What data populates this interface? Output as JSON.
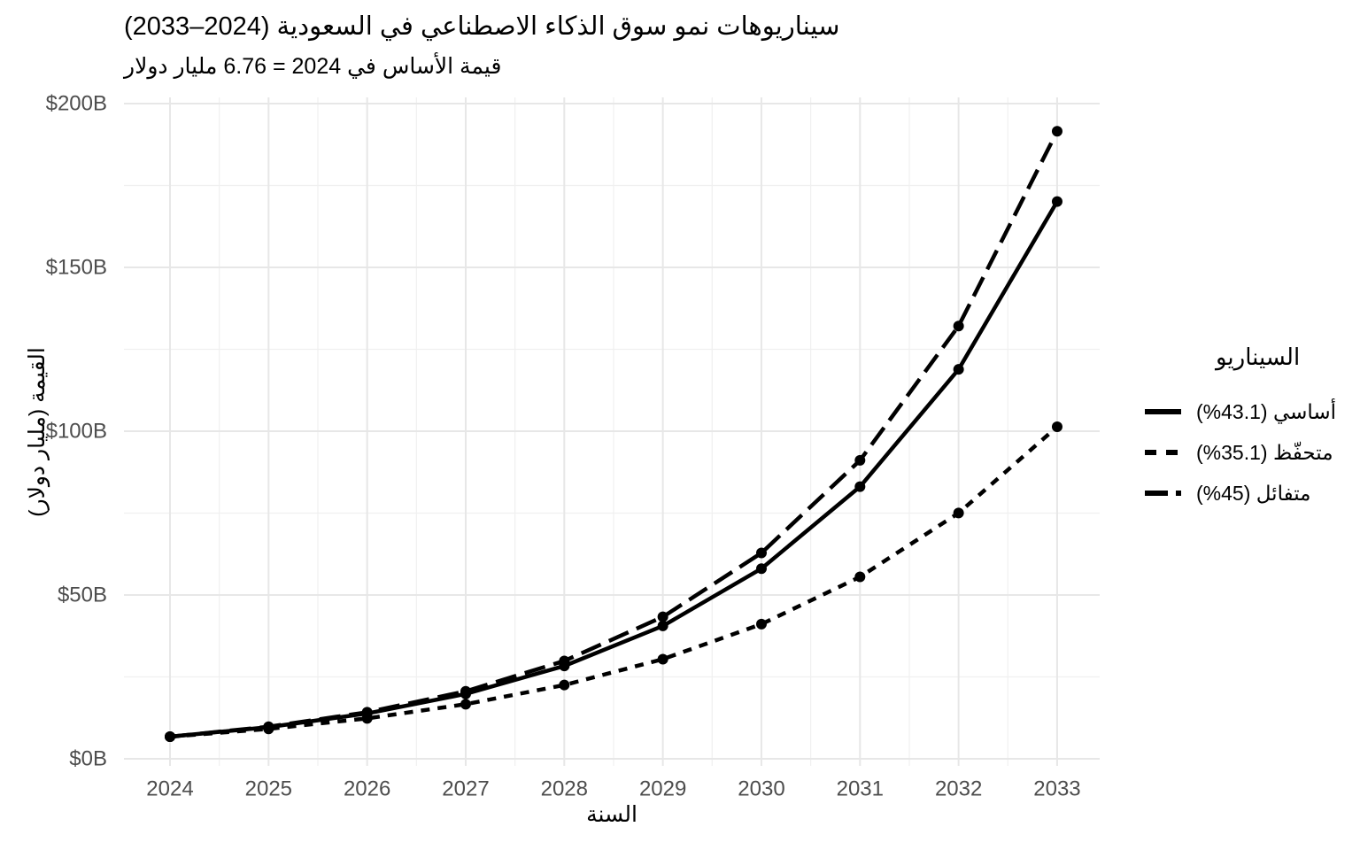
{
  "header": {
    "title": "سيناريوهات نمو سوق الذكاء الاصطناعي في السعودية (2024–2033)",
    "subtitle": "قيمة الأساس في 2024 = 6.76 مليار دولار"
  },
  "axes": {
    "x_title": "السنة",
    "y_title": "القيمة (مليار دولار)"
  },
  "legend": {
    "title": "السيناريو",
    "position": "right"
  },
  "chart_data": {
    "type": "line",
    "title": "سيناريوهات نمو سوق الذكاء الاصطناعي في السعودية (2024–2033)",
    "subtitle": "قيمة الأساس في 2024 = 6.76 مليار دولار",
    "xlabel": "السنة",
    "ylabel": "القيمة (مليار دولار)",
    "x": [
      2024,
      2025,
      2026,
      2027,
      2028,
      2029,
      2030,
      2031,
      2032,
      2033
    ],
    "ylim": [
      0,
      200
    ],
    "grid": true,
    "y_ticks": {
      "values": [
        0,
        50,
        100,
        150,
        200
      ],
      "labels": [
        "$0B",
        "$50B",
        "$100B",
        "$150B",
        "$200B"
      ]
    },
    "y_minor_ticks": [
      25,
      75,
      125,
      175
    ],
    "base_value_2024": 6.76,
    "line_color": "#000000",
    "series": [
      {
        "name": "أساسي",
        "label": "أساسي (43.1%)",
        "growth_rate": "43.1%",
        "linestyle": "solid",
        "values": [
          6.76,
          9.67,
          13.84,
          19.81,
          28.35,
          40.56,
          58.05,
          83.07,
          118.87,
          170.1
        ]
      },
      {
        "name": "متحفّظ",
        "label": "متحفّظ (35.1%)",
        "growth_rate": "35.1%",
        "linestyle": "dashed",
        "values": [
          6.76,
          9.13,
          12.34,
          16.67,
          22.52,
          30.42,
          41.1,
          55.53,
          75.02,
          101.36
        ]
      },
      {
        "name": "متفائل",
        "label": "متفائل (45%)",
        "growth_rate": "45%",
        "linestyle": "longdash",
        "values": [
          6.76,
          9.8,
          14.21,
          20.61,
          29.88,
          43.33,
          62.83,
          91.1,
          132.1,
          191.54
        ]
      }
    ]
  },
  "style": {
    "grid_major_color": "#e7e7e7",
    "grid_minor_color": "#f0f0f0",
    "tick_text_color": "#4d4d4d",
    "background": "#ffffff"
  }
}
